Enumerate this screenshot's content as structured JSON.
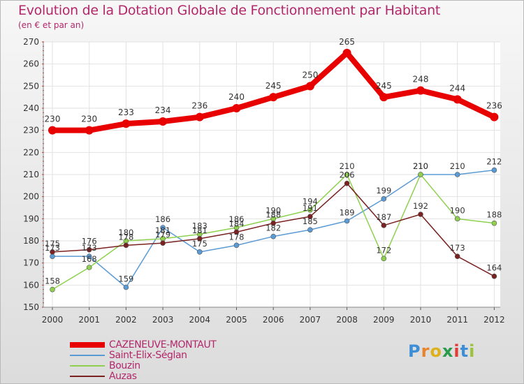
{
  "title": "Evolution de la Dotation Globale de Fonctionnement par Habitant",
  "subtitle": "(en € et par an)",
  "logo": {
    "text": "Proxiti",
    "letter_colors": [
      "#3c8fd6",
      "#e8842c",
      "#ddb11a",
      "#2a9a4b",
      "#e23b36",
      "#3c8fd6",
      "#9ac33c"
    ]
  },
  "chart_data": {
    "type": "line",
    "x": [
      "2000",
      "2001",
      "2002",
      "2003",
      "2004",
      "2005",
      "2006",
      "2007",
      "2008",
      "2009",
      "2010",
      "2011",
      "2012"
    ],
    "ylim": [
      150,
      270
    ],
    "yticks": [
      "150",
      "160",
      "170",
      "180",
      "190",
      "200",
      "210",
      "220",
      "230",
      "240",
      "250",
      "260",
      "270"
    ],
    "grid": true,
    "legend_position": "bottom-left",
    "series": [
      {
        "name": "CAZENEUVE-MONTAUT",
        "color": "#e80000",
        "values": [
          230,
          230,
          233,
          234,
          236,
          240,
          245,
          250,
          265,
          245,
          248,
          244,
          236
        ]
      },
      {
        "name": "Saint-Elix-Séglan",
        "color": "#5b9bd5",
        "values": [
          173,
          173,
          159,
          186,
          175,
          178,
          182,
          185,
          189,
          199,
          210,
          210,
          212
        ]
      },
      {
        "name": "Bouzin",
        "color": "#8fd14f",
        "values": [
          158,
          168,
          180,
          181,
          183,
          186,
          190,
          194,
          210,
          172,
          210,
          190,
          188
        ]
      },
      {
        "name": "Auzas",
        "color": "#7a2222",
        "values": [
          175,
          176,
          178,
          179,
          181,
          184,
          188,
          191,
          206,
          187,
          192,
          173,
          164
        ]
      }
    ]
  }
}
